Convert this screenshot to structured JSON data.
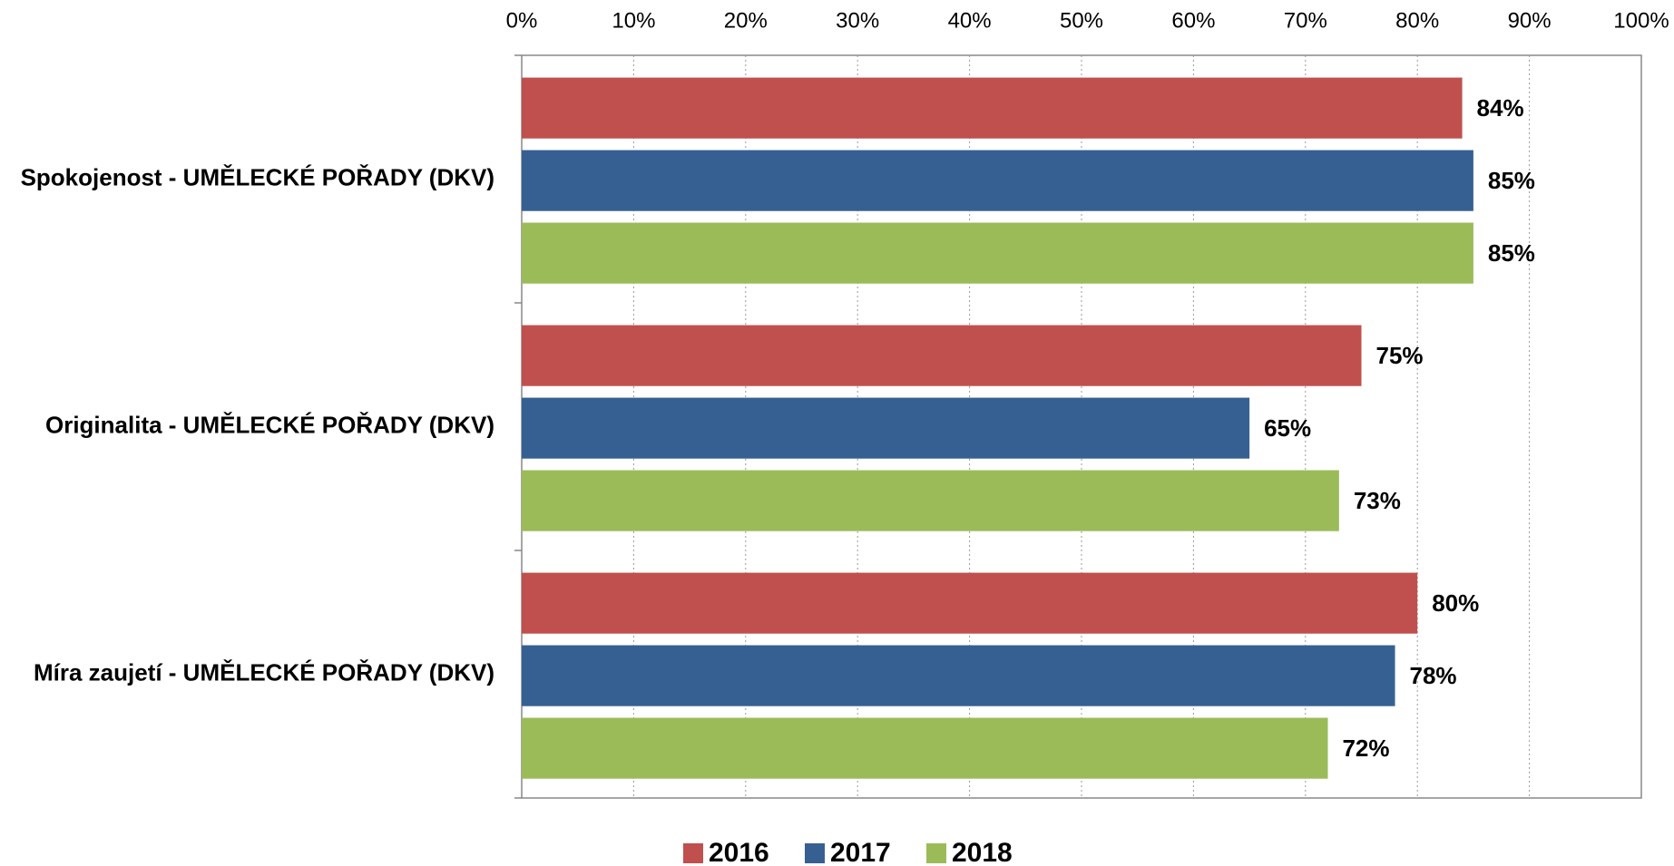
{
  "chart_data": {
    "type": "bar",
    "orientation": "horizontal",
    "categories": [
      "Spokojenost - UMĚLECKÉ POŘADY (DKV)",
      "Originalita - UMĚLECKÉ POŘADY (DKV)",
      "Míra zaujetí - UMĚLECKÉ POŘADY (DKV)"
    ],
    "series": [
      {
        "name": "2016",
        "color": "#c0504d",
        "values": [
          84,
          75,
          80
        ],
        "value_labels": [
          "84%",
          "75%",
          "80%"
        ]
      },
      {
        "name": "2017",
        "color": "#366092",
        "values": [
          85,
          65,
          78
        ],
        "value_labels": [
          "85%",
          "65%",
          "78%"
        ]
      },
      {
        "name": "2018",
        "color": "#9bbb59",
        "values": [
          85,
          73,
          72
        ],
        "value_labels": [
          "85%",
          "73%",
          "72%"
        ]
      }
    ],
    "xlim": [
      0,
      100
    ],
    "xticks": [
      {
        "value": 0,
        "label": "0%"
      },
      {
        "value": 10,
        "label": "10%"
      },
      {
        "value": 20,
        "label": "20%"
      },
      {
        "value": 30,
        "label": "30%"
      },
      {
        "value": 40,
        "label": "40%"
      },
      {
        "value": 50,
        "label": "50%"
      },
      {
        "value": 60,
        "label": "60%"
      },
      {
        "value": 70,
        "label": "70%"
      },
      {
        "value": 80,
        "label": "80%"
      },
      {
        "value": 90,
        "label": "90%"
      },
      {
        "value": 100,
        "label": "100%"
      }
    ],
    "grid": true,
    "legend": "bottom"
  }
}
